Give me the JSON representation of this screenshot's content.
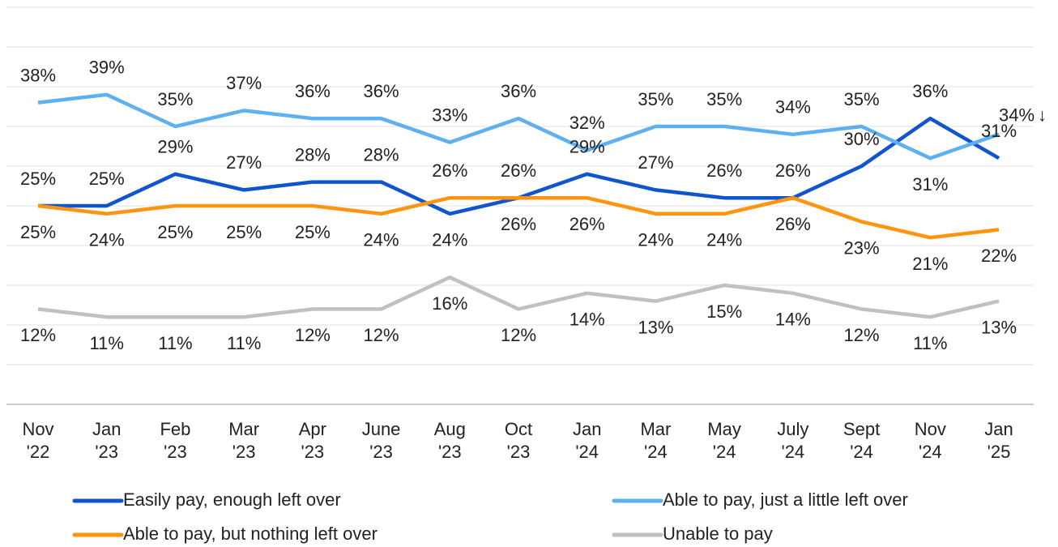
{
  "chart_data": {
    "type": "line",
    "categories": [
      "Nov\n'22",
      "Jan\n'23",
      "Feb\n'23",
      "Mar\n'23",
      "Apr\n'23",
      "June\n'23",
      "Aug\n'23",
      "Oct\n'23",
      "Jan\n'24",
      "Mar\n'24",
      "May\n'24",
      "July\n'24",
      "Sept\n'24",
      "Nov\n'24",
      "Jan\n'25"
    ],
    "series": [
      {
        "name": "Easily pay, enough left over",
        "color": "#1155cc",
        "values": [
          25,
          25,
          29,
          27,
          28,
          28,
          24,
          26,
          29,
          27,
          26,
          26,
          30,
          36,
          31
        ],
        "value_labels": [
          "25%",
          "25%",
          "29%",
          "27%",
          "28%",
          "28%",
          "24%",
          "26%",
          "29%",
          "27%",
          "26%",
          "26%",
          "30%",
          "36%",
          "31%"
        ]
      },
      {
        "name": "Able to pay, just a little left over",
        "color": "#5eb0ee",
        "values": [
          38,
          39,
          35,
          37,
          36,
          36,
          33,
          36,
          32,
          35,
          35,
          34,
          35,
          31,
          34
        ],
        "value_labels": [
          "38%",
          "39%",
          "35%",
          "37%",
          "36%",
          "36%",
          "33%",
          "36%",
          "32%",
          "35%",
          "35%",
          "34%",
          "35%",
          "31%",
          "34%"
        ]
      },
      {
        "name": "Able to pay, but nothing left over",
        "color": "#ff9410",
        "values": [
          25,
          24,
          25,
          25,
          25,
          24,
          26,
          26,
          26,
          24,
          24,
          26,
          23,
          21,
          22
        ],
        "value_labels": [
          "25%",
          "24%",
          "25%",
          "25%",
          "25%",
          "24%",
          "26%",
          "26%",
          "26%",
          "24%",
          "24%",
          "26%",
          "23%",
          "21%",
          "22%"
        ]
      },
      {
        "name": "Unable to pay",
        "color": "#c0c0c0",
        "values": [
          12,
          11,
          11,
          11,
          12,
          12,
          16,
          12,
          14,
          13,
          15,
          14,
          12,
          11,
          13
        ],
        "value_labels": [
          "12%",
          "11%",
          "11%",
          "11%",
          "12%",
          "12%",
          "16%",
          "12%",
          "14%",
          "13%",
          "15%",
          "14%",
          "12%",
          "11%",
          "13%"
        ]
      }
    ],
    "annotation": "↓",
    "ylim": [
      0,
      50
    ],
    "yticks": [
      0,
      5,
      10,
      15,
      20,
      25,
      30,
      35,
      40,
      45,
      50
    ],
    "grid": true
  }
}
